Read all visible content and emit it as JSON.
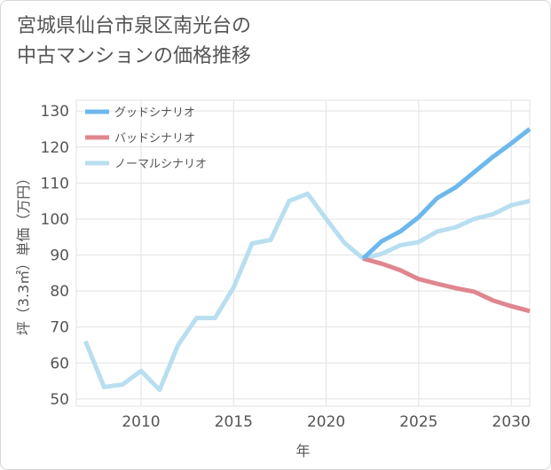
{
  "title": {
    "line1": "宮城県仙台市泉区南光台の",
    "line2": "中古マンションの価格推移"
  },
  "colors": {
    "good": "#6cb8ec",
    "bad": "#e0868f",
    "normal": "#b8dff0",
    "grid": "#e2e2e2",
    "text": "#555555"
  },
  "chart_data": {
    "type": "line",
    "title": "宮城県仙台市泉区南光台の中古マンションの価格推移",
    "xlabel": "年",
    "ylabel": "坪（3.3㎡）単価（万円）",
    "xlim": [
      2006.5,
      2031
    ],
    "ylim": [
      48,
      133
    ],
    "xticks": [
      2010,
      2015,
      2020,
      2025,
      2030
    ],
    "yticks": [
      50,
      60,
      70,
      80,
      90,
      100,
      110,
      120,
      130
    ],
    "grid": true,
    "legend_position": "top-left",
    "series": [
      {
        "name": "グッドシナリオ",
        "color": "#6cb8ec",
        "x": [
          2022,
          2023,
          2024,
          2025,
          2026,
          2027,
          2028,
          2029,
          2030,
          2031
        ],
        "y": [
          89,
          93.8,
          96.5,
          100.5,
          105.8,
          108.8,
          113,
          117.2,
          121,
          125
        ]
      },
      {
        "name": "バッドシナリオ",
        "color": "#e0868f",
        "x": [
          2022,
          2023,
          2024,
          2025,
          2026,
          2027,
          2028,
          2029,
          2030,
          2031
        ],
        "y": [
          89,
          87.6,
          85.8,
          83.3,
          82,
          80.8,
          79.8,
          77.4,
          75.8,
          74.4
        ]
      },
      {
        "name": "ノーマルシナリオ",
        "color": "#b8dff0",
        "x": [
          2007,
          2008,
          2009,
          2010,
          2011,
          2012,
          2013,
          2014,
          2015,
          2016,
          2017,
          2018,
          2019,
          2020,
          2021,
          2022,
          2023,
          2024,
          2025,
          2026,
          2027,
          2028,
          2029,
          2030,
          2031
        ],
        "y": [
          66,
          53.3,
          54,
          57.8,
          52.5,
          65,
          72.5,
          72.5,
          81,
          93.2,
          94.2,
          105,
          107,
          100,
          93.3,
          89,
          90.3,
          92.7,
          93.6,
          96.5,
          97.7,
          100,
          101.3,
          103.8,
          105
        ]
      }
    ]
  }
}
